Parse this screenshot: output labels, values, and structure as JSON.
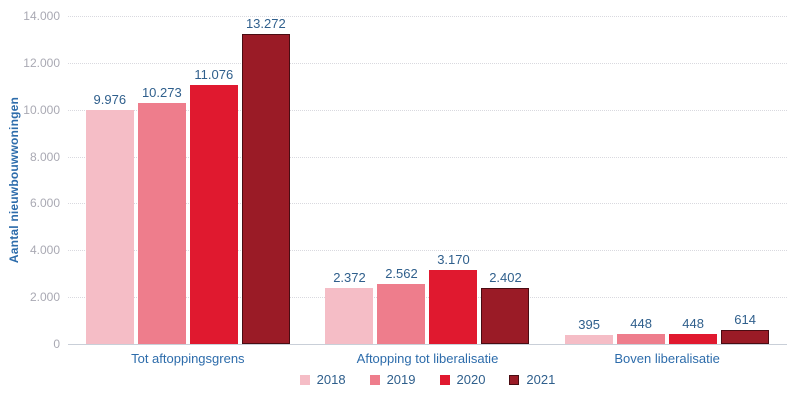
{
  "chart_data": {
    "type": "bar",
    "title": "",
    "xlabel": "",
    "ylabel": "Aantal nieuwbouwwoningen",
    "ylim": [
      0,
      14000
    ],
    "ytick_interval": 2000,
    "yticks": [
      {
        "value": 0,
        "label": "0"
      },
      {
        "value": 2000,
        "label": "2.000"
      },
      {
        "value": 4000,
        "label": "4.000"
      },
      {
        "value": 6000,
        "label": "6.000"
      },
      {
        "value": 8000,
        "label": "8.000"
      },
      {
        "value": 10000,
        "label": "10.000"
      },
      {
        "value": 12000,
        "label": "12.000"
      },
      {
        "value": 14000,
        "label": "14.000"
      }
    ],
    "grid": "horizontal-dotted",
    "legend_position": "bottom-center",
    "categories": [
      "Tot aftoppingsgrens",
      "Aftopping tot liberalisatie",
      "Boven liberalisatie"
    ],
    "series": [
      {
        "name": "2018",
        "color": "#f5bdc6",
        "values": [
          9976,
          2372,
          395
        ],
        "value_labels": [
          "9.976",
          "2.372",
          "395"
        ]
      },
      {
        "name": "2019",
        "color": "#ee7d8c",
        "values": [
          10273,
          2562,
          448
        ],
        "value_labels": [
          "10.273",
          "2.562",
          "448"
        ]
      },
      {
        "name": "2020",
        "color": "#e0192f",
        "values": [
          11076,
          3170,
          448
        ],
        "value_labels": [
          "11.076",
          "3.170",
          "448"
        ]
      },
      {
        "name": "2021",
        "color": "#9a1b26",
        "border_color": "#4a0c12",
        "values": [
          13272,
          2402,
          614
        ],
        "value_labels": [
          "13.272",
          "2.402",
          "614"
        ]
      }
    ]
  },
  "styles": {
    "background_color": "#ffffff",
    "value_label_color": "#2f5f8c",
    "category_label_color": "#2d6cab",
    "axis_title_color": "#2d6cab",
    "legend_label_color": "#2f5f8c",
    "tick_label_color": "#a9a9b3",
    "gridline_color": "#d9d9df",
    "axis_line_color": "#c9cfd8"
  }
}
